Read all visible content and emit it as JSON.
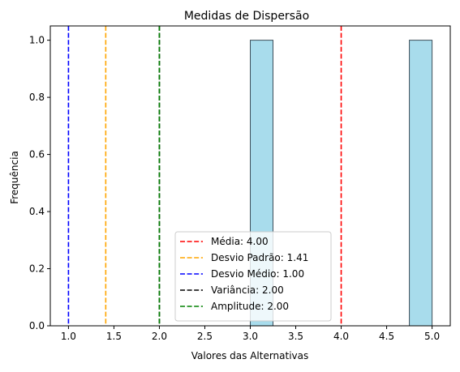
{
  "chart_data": {
    "type": "bar",
    "title": "Medidas de Dispersão",
    "xlabel": "Valores das Alternativas",
    "ylabel": "Frequência",
    "xlim": [
      0.8,
      5.2
    ],
    "ylim": [
      0.0,
      1.05
    ],
    "x_ticks": [
      "1.0",
      "1.5",
      "2.0",
      "2.5",
      "3.0",
      "3.5",
      "4.0",
      "4.5",
      "5.0"
    ],
    "y_ticks": [
      "0.0",
      "0.2",
      "0.4",
      "0.6",
      "0.8",
      "1.0"
    ],
    "grid": false,
    "legend_position": "lower-center",
    "bar_color": "#a8dcec",
    "bar_edge_color": "#3d4f5a",
    "bars": [
      {
        "x_start": 3.0,
        "x_end": 3.25,
        "value": 1
      },
      {
        "x_start": 4.75,
        "x_end": 5.0,
        "value": 1
      }
    ],
    "reference_lines": [
      {
        "label": "Média: 4.00",
        "x": 4.0,
        "color": "#ff0000"
      },
      {
        "label": "Desvio Padrão: 1.41",
        "x": 1.41,
        "color": "#ffa500"
      },
      {
        "label": "Desvio Médio: 1.00",
        "x": 1.0,
        "color": "#0000ff"
      },
      {
        "label": "Variância: 2.00",
        "x": 2.0,
        "color": "#000000"
      },
      {
        "label": "Amplitude: 2.00",
        "x": 2.0,
        "color": "#008000"
      }
    ]
  }
}
